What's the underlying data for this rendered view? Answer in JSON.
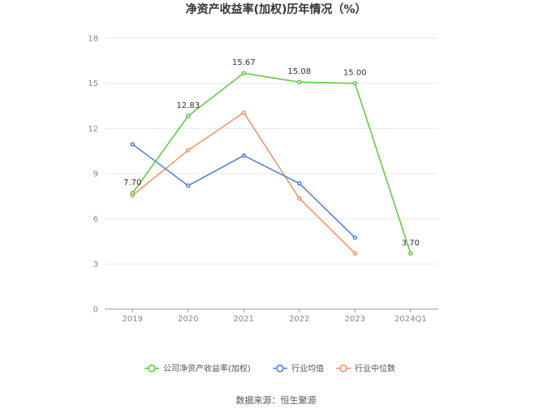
{
  "chart_data": {
    "type": "line",
    "title": "净资产收益率(加权)历年情况（%）",
    "categories": [
      "2019",
      "2020",
      "2021",
      "2022",
      "2023",
      "2024Q1"
    ],
    "ylim": [
      0,
      18
    ],
    "yticks": [
      0,
      3,
      6,
      9,
      12,
      15,
      18
    ],
    "grid": true,
    "legend_position": "bottom",
    "series": [
      {
        "name": "公司净资产收益率(加权)",
        "color": "#5cc83c",
        "values": [
          7.7,
          12.83,
          15.67,
          15.08,
          15.0,
          3.7
        ],
        "labels": [
          "7.70",
          "12.83",
          "15.67",
          "15.08",
          "15.00",
          "3.70"
        ]
      },
      {
        "name": "行业均值",
        "color": "#4a7de0",
        "values": [
          10.95,
          8.2,
          10.2,
          8.35,
          4.75,
          null
        ]
      },
      {
        "name": "行业中位数",
        "color": "#f09068",
        "values": [
          7.55,
          10.55,
          13.05,
          7.35,
          3.7,
          null
        ]
      }
    ]
  },
  "source_text": "数据来源：恒生聚源"
}
